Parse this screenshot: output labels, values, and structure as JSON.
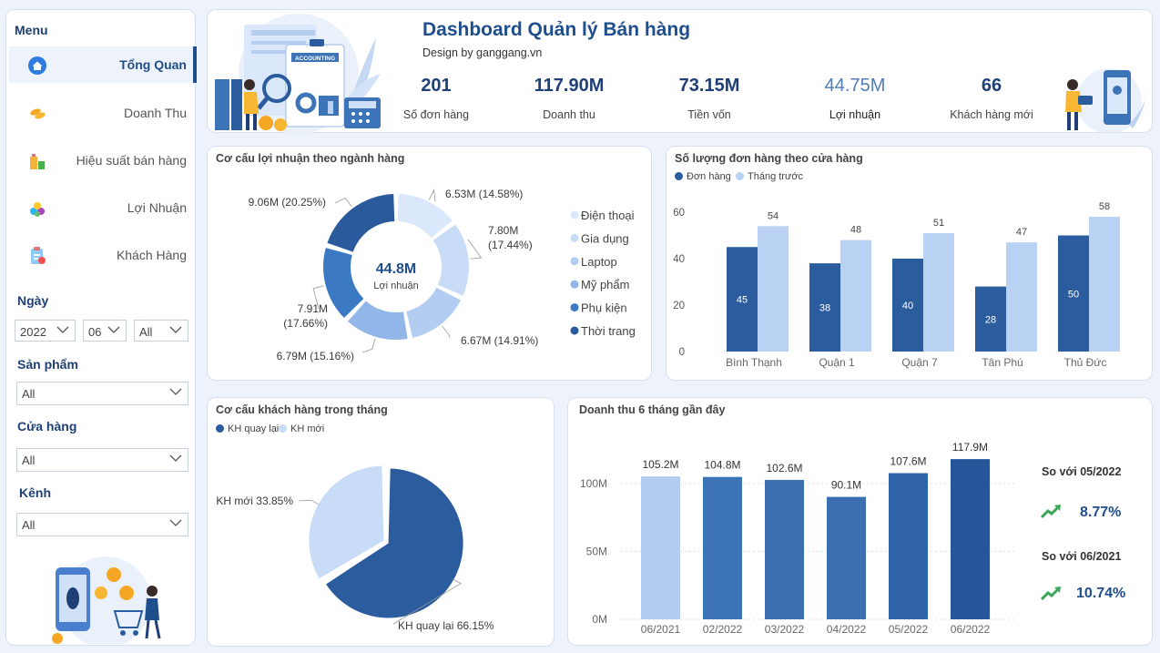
{
  "sidebar": {
    "menu_title": "Menu",
    "items": [
      {
        "label": "Tổng Quan",
        "icon": "home-icon"
      },
      {
        "label": "Doanh Thu",
        "icon": "coins-icon"
      },
      {
        "label": "Hiệu suất bán hàng",
        "icon": "building-chart-icon"
      },
      {
        "label": "Lợi Nhuận",
        "icon": "pie-icon"
      },
      {
        "label": "Khách Hàng",
        "icon": "clipboard-icon"
      }
    ],
    "filters": {
      "date_label": "Ngày",
      "year": "2022",
      "month": "06",
      "day": "All",
      "product_label": "Sản phẩm",
      "product": "All",
      "store_label": "Cửa hàng",
      "store": "All",
      "channel_label": "Kênh",
      "channel": "All"
    }
  },
  "header": {
    "title": "Dashboard Quản lý Bán hàng",
    "subtitle": "Design by ganggang.vn",
    "kpis": [
      {
        "value": "201",
        "label": "Số đơn hàng"
      },
      {
        "value": "117.90M",
        "label": "Doanh thu"
      },
      {
        "value": "73.15M",
        "label": "Tiền vốn"
      },
      {
        "value": "44.75M",
        "label": "Lợi nhuận"
      },
      {
        "value": "66",
        "label": "Khách hàng mới"
      }
    ],
    "illustration_text": "ACCOUNTING"
  },
  "colors": {
    "dark": "#2b5c9e",
    "mid": "#3d7cc9",
    "light": "#b9d1f3",
    "title": "#1f4e8c",
    "green": "#3aa757"
  },
  "profit_card": {
    "title": "Cơ cấu lợi nhuận theo ngành hàng",
    "chart_data": {
      "type": "pie",
      "title": "Cơ cấu lợi nhuận theo ngành hàng",
      "center_value": "44.8M",
      "center_label": "Lợi nhuận",
      "slices": [
        {
          "name": "Điện thoại",
          "value": 6.53,
          "label": "6.53M (14.58%)",
          "color": "#dbe7fa"
        },
        {
          "name": "Gia dụng",
          "value": 7.8,
          "label": "7.80M (17.44%)",
          "label_l1": "7.80M",
          "label_l2": "(17.44%)",
          "color": "#c8dbf7"
        },
        {
          "name": "Laptop",
          "value": 6.67,
          "label": "6.67M (14.91%)",
          "color": "#b3cdf2"
        },
        {
          "name": "Mỹ phẩm",
          "value": 6.79,
          "label": "6.79M (15.16%)",
          "color": "#90b6ea"
        },
        {
          "name": "Phụ kiện",
          "value": 7.91,
          "label": "7.91M (17.66%)",
          "label_l1": "7.91M",
          "label_l2": "(17.66%)",
          "color": "#3b79c2"
        },
        {
          "name": "Thời trang",
          "value": 9.06,
          "label": "9.06M (20.25%)",
          "color": "#2a5a9c"
        }
      ]
    }
  },
  "orders_card": {
    "title": "Số lượng đơn hàng theo cửa hàng",
    "chart_data": {
      "type": "bar",
      "title": "Số lượng đơn hàng theo cửa hàng",
      "categories": [
        "Bình Thạnh",
        "Quận 1",
        "Quận 7",
        "Tân Phú",
        "Thủ Đức"
      ],
      "series": [
        {
          "name": "Đơn hàng",
          "values": [
            45,
            38,
            40,
            28,
            50
          ],
          "color": "#2b5c9e"
        },
        {
          "name": "Tháng trước",
          "values": [
            54,
            48,
            51,
            47,
            58
          ],
          "color": "#b9d1f3"
        }
      ],
      "yticks": [
        "0",
        "20",
        "40",
        "60"
      ],
      "ylim": [
        0,
        60
      ]
    }
  },
  "customers_card": {
    "title": "Cơ cấu khách hàng trong tháng",
    "chart_data": {
      "type": "pie",
      "title": "Cơ cấu khách hàng trong tháng",
      "slices": [
        {
          "name": "KH quay lại",
          "value": 66.15,
          "label": "KH quay lại 66.15%",
          "color": "#2b5c9e"
        },
        {
          "name": "KH mới",
          "value": 33.85,
          "label": "KH mới 33.85%",
          "color": "#c8dbf7"
        }
      ]
    }
  },
  "revenue_card": {
    "title": "Doanh thu 6 tháng gần đây",
    "chart_data": {
      "type": "bar",
      "title": "Doanh thu 6 tháng gần đây",
      "categories": [
        "06/2021",
        "02/2022",
        "03/2022",
        "04/2022",
        "05/2022",
        "06/2022"
      ],
      "values": [
        105.2,
        104.8,
        102.6,
        90.1,
        107.6,
        117.9
      ],
      "labels": [
        "105.2M",
        "104.8M",
        "102.6M",
        "90.1M",
        "107.6M",
        "117.9M"
      ],
      "colors": [
        "#b3cdf2",
        "#3d74b8",
        "#3b6fb0",
        "#3b6fb0",
        "#2f64a8",
        "#275599"
      ],
      "yticks": [
        "0M",
        "50M",
        "100M"
      ],
      "ylim": [
        0,
        120
      ]
    },
    "comparisons": [
      {
        "label": "So với 05/2022",
        "value": "8.77%"
      },
      {
        "label": "So với 06/2021",
        "value": "10.74%"
      }
    ]
  }
}
